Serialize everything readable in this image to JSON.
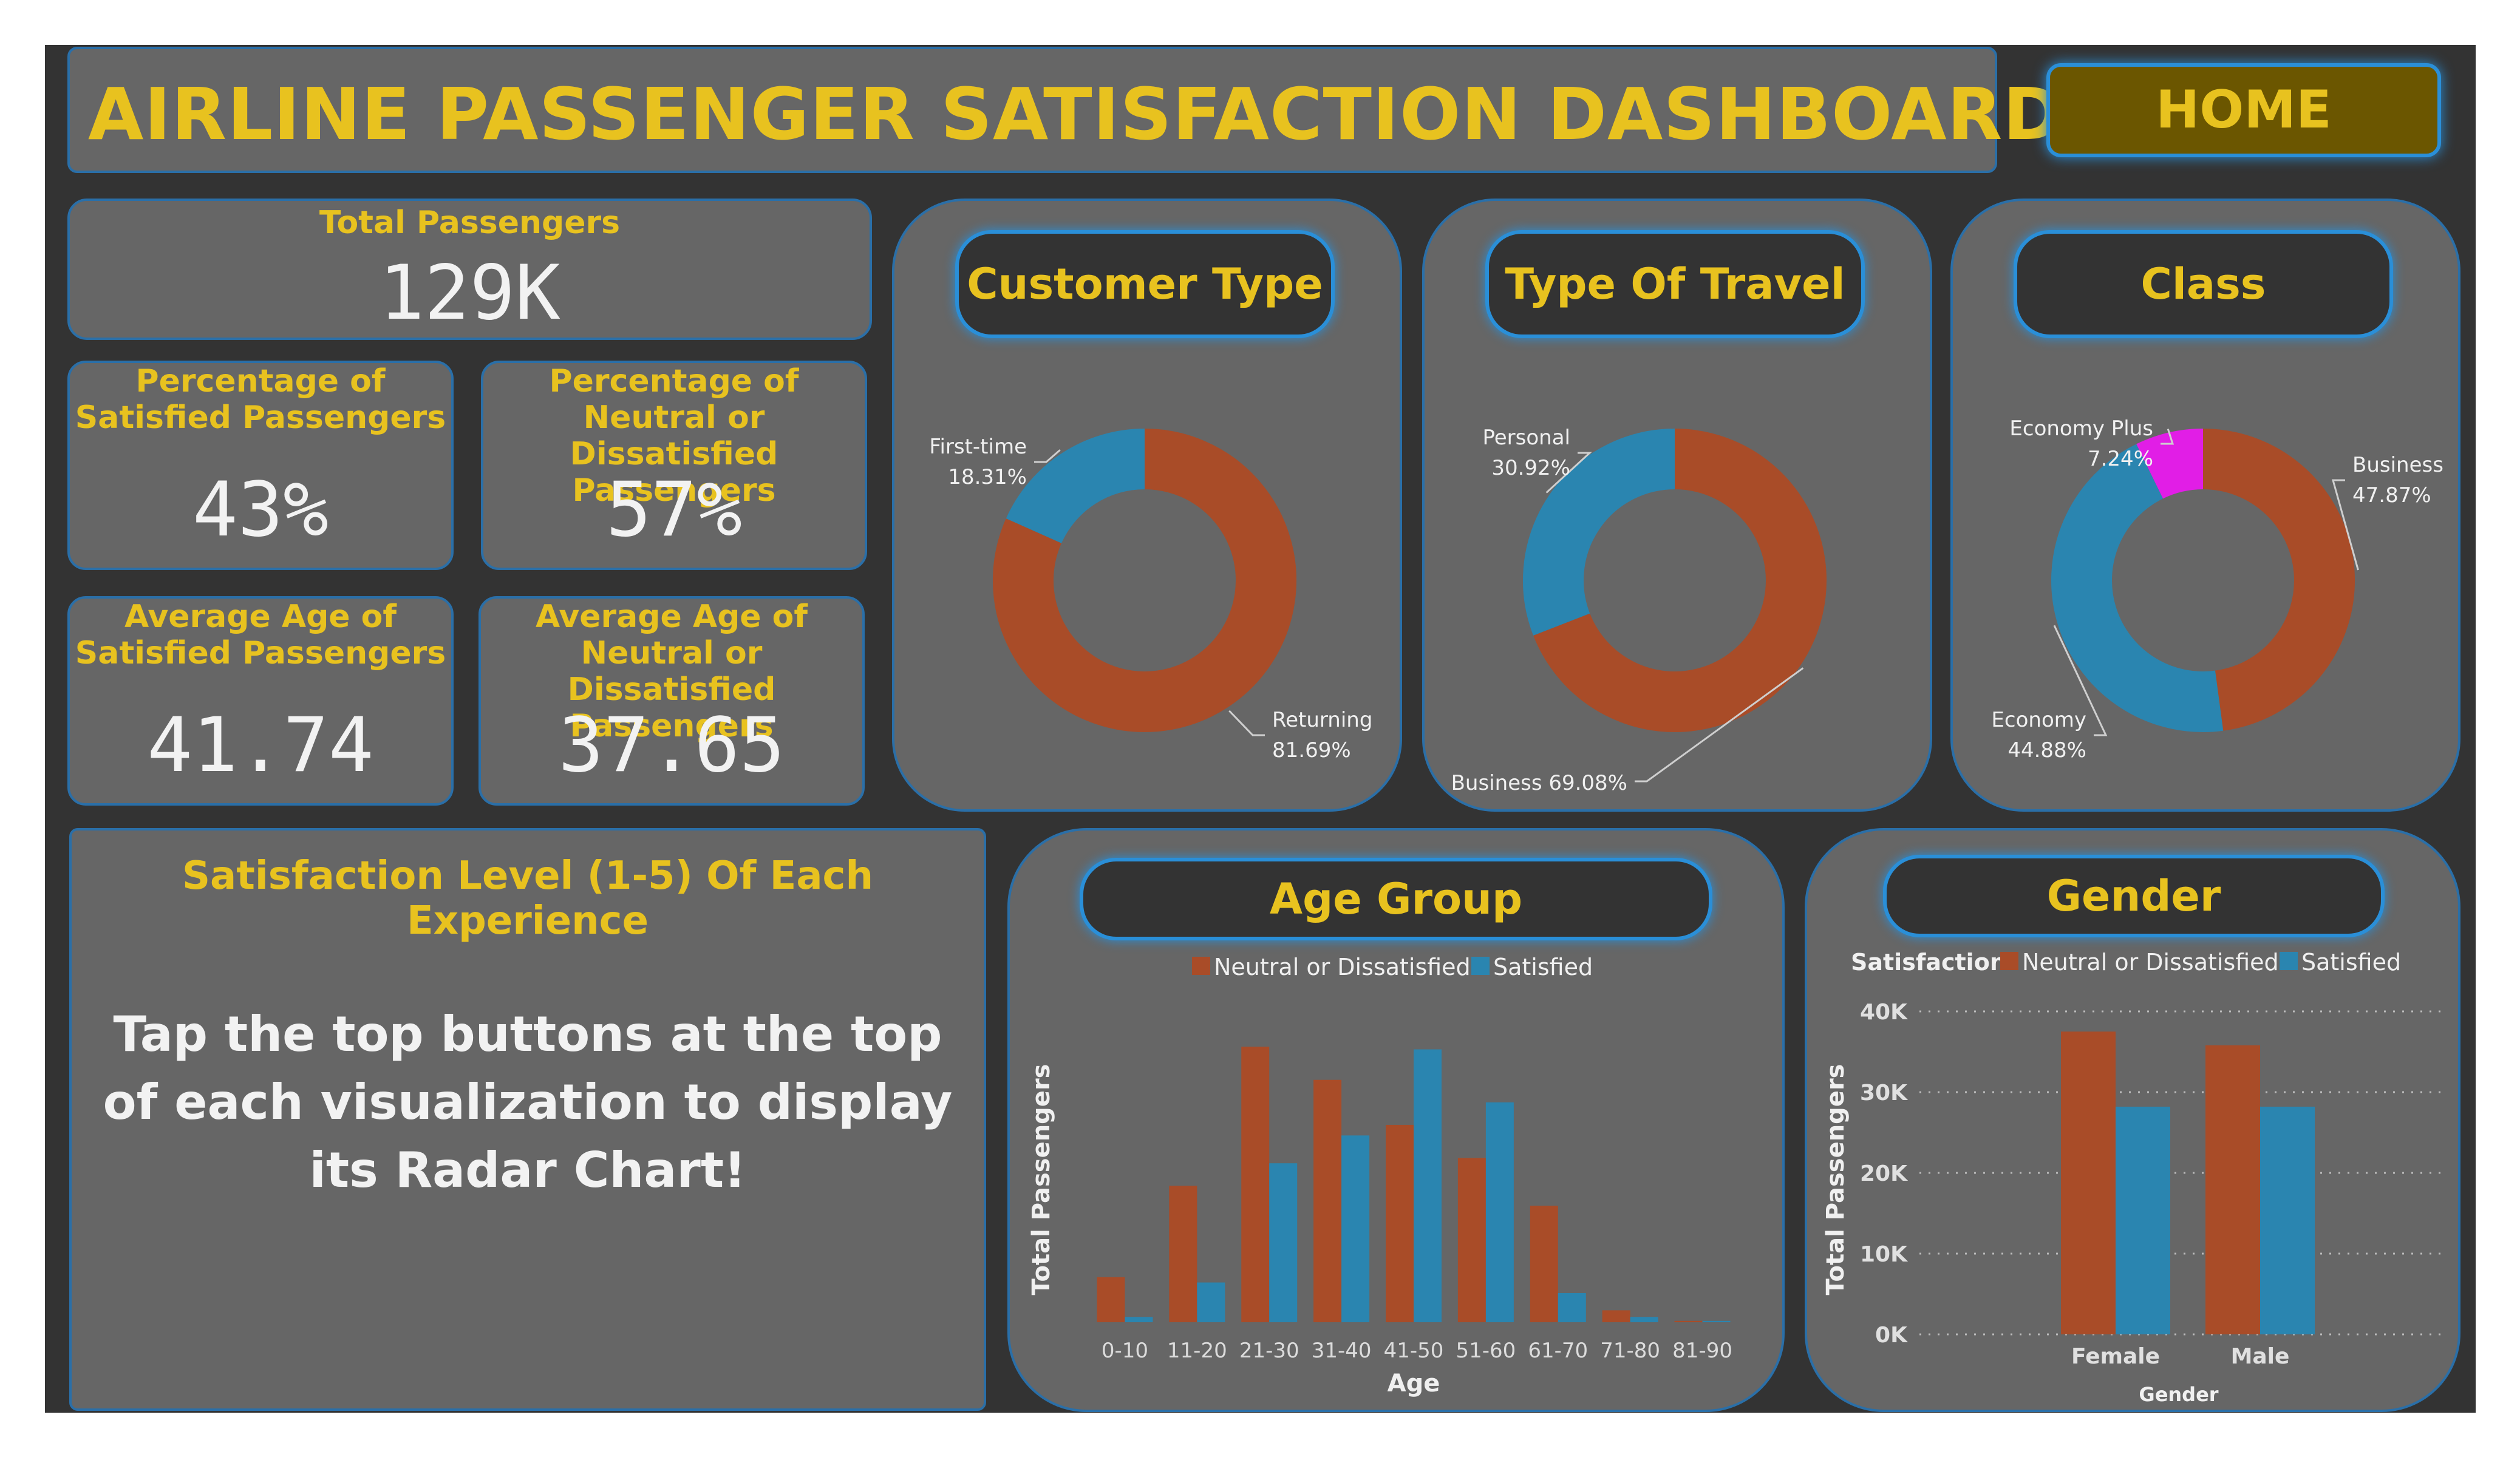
{
  "header": {
    "title": "AIRLINE PASSENGER SATISFACTION DASHBOARD",
    "home_label": "HOME"
  },
  "kpis": {
    "total": {
      "label": "Total Passengers",
      "value": "129K"
    },
    "pct_satisfied": {
      "label": "Percentage of Satisfied Passengers",
      "value": "43%"
    },
    "pct_neutral": {
      "label": "Percentage of Neutral or Dissatisfied Passengers",
      "value": "57%"
    },
    "age_satisfied": {
      "label": "Average Age of Satisfied Passengers",
      "value": "41.74"
    },
    "age_neutral": {
      "label": "Average Age of Neutral or Dissatisfied Passengers",
      "value": "37.65"
    }
  },
  "satisfaction_panel": {
    "title": "Satisfaction Level (1-5) Of Each Experience",
    "message": "Tap the top buttons at the top of each visualization to display its Radar Chart!"
  },
  "colors": {
    "orange": "#a94c28",
    "blue": "#2a85b0",
    "magenta": "#e11ee6",
    "accent": "#e8c21f",
    "panel": "#666666",
    "background": "#333333"
  },
  "chart_data": [
    {
      "type": "pie",
      "title": "Customer Type",
      "slices": [
        {
          "label": "Returning",
          "value": 81.69,
          "display": "81.69%",
          "color": "#a94c28"
        },
        {
          "label": "First-time",
          "value": 18.31,
          "display": "18.31%",
          "color": "#2a85b0"
        }
      ]
    },
    {
      "type": "pie",
      "title": "Type Of Travel",
      "slices": [
        {
          "label": "Business",
          "value": 69.08,
          "display": "69.08%",
          "color": "#a94c28"
        },
        {
          "label": "Personal",
          "value": 30.92,
          "display": "30.92%",
          "color": "#2a85b0"
        }
      ]
    },
    {
      "type": "pie",
      "title": "Class",
      "slices": [
        {
          "label": "Business",
          "value": 47.87,
          "display": "47.87%",
          "color": "#a94c28"
        },
        {
          "label": "Economy",
          "value": 44.88,
          "display": "44.88%",
          "color": "#2a85b0"
        },
        {
          "label": "Economy Plus",
          "value": 7.24,
          "display": "7.24%",
          "color": "#e11ee6"
        }
      ]
    },
    {
      "type": "bar",
      "title": "Age Group",
      "xlabel": "Age",
      "ylabel": "Total Passengers",
      "categories": [
        "0-10",
        "11-20",
        "21-30",
        "31-40",
        "41-50",
        "51-60",
        "61-70",
        "71-80",
        "81-90"
      ],
      "series": [
        {
          "name": "Neutral or Dissatisfied",
          "color": "#a94c28",
          "values": [
            3400,
            10300,
            20800,
            18300,
            14900,
            12400,
            8800,
            900,
            100
          ]
        },
        {
          "name": "Satisfied",
          "color": "#2a85b0",
          "values": [
            400,
            3000,
            12000,
            14100,
            20600,
            16600,
            2200,
            400,
            100
          ]
        }
      ]
    },
    {
      "type": "bar",
      "title": "Gender",
      "xlabel": "Gender",
      "ylabel": "Total Passengers",
      "legend_title": "Satisfaction",
      "categories": [
        "Female",
        "Male"
      ],
      "ylim": [
        0,
        40000
      ],
      "yticks": [
        {
          "value": 0,
          "label": "0K"
        },
        {
          "value": 10000,
          "label": "10K"
        },
        {
          "value": 20000,
          "label": "20K"
        },
        {
          "value": 30000,
          "label": "30K"
        },
        {
          "value": 40000,
          "label": "40K"
        }
      ],
      "grid": true,
      "series": [
        {
          "name": "Neutral or Dissatisfied",
          "color": "#a94c28",
          "values": [
            37500,
            35800
          ]
        },
        {
          "name": "Satisfied",
          "color": "#2a85b0",
          "values": [
            28200,
            28200
          ]
        }
      ]
    }
  ]
}
